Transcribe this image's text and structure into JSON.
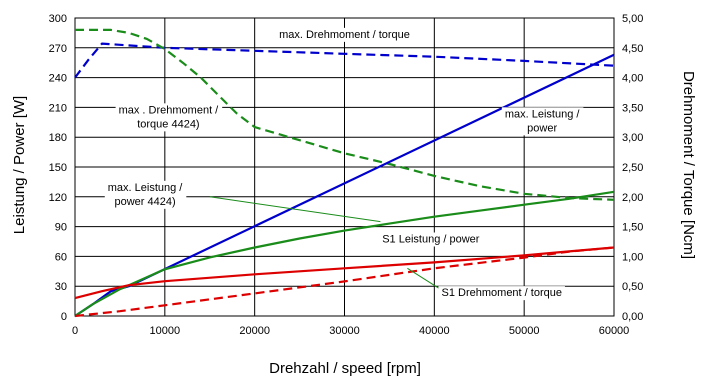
{
  "chart_data": {
    "type": "line",
    "xlabel": "Drehzahl / speed [rpm]",
    "ylabel_left": "Leistung / Power [W]",
    "ylabel_right": "Drehmoment / Torque  [Ncm]",
    "xlim": [
      0,
      60000
    ],
    "ylim_left": [
      0,
      300
    ],
    "ylim_right": [
      0,
      5
    ],
    "x_ticks": [
      "0",
      "10000",
      "20000",
      "30000",
      "40000",
      "50000",
      "60000"
    ],
    "y_left_ticks": [
      "0",
      "30",
      "60",
      "90",
      "120",
      "150",
      "180",
      "210",
      "240",
      "270",
      "300"
    ],
    "y_right_ticks": [
      "0,00",
      "0,50",
      "1,00",
      "1,50",
      "2,00",
      "2,50",
      "3,00",
      "3,50",
      "4,00",
      "4,50",
      "5,00"
    ],
    "grid": true,
    "series": [
      {
        "id": "torque_max_dashed_blue",
        "axis": "right",
        "color": "#0000cc",
        "style": "dashed",
        "x": [
          0,
          1500,
          3000,
          5000,
          10000,
          20000,
          30000,
          40000,
          50000,
          60000
        ],
        "y": [
          4.0,
          4.3,
          4.57,
          4.55,
          4.5,
          4.45,
          4.4,
          4.35,
          4.28,
          4.2
        ]
      },
      {
        "id": "torque_max_4424_dashed_green",
        "axis": "right",
        "color": "#1a8c1a",
        "style": "dashed",
        "x": [
          0,
          4000,
          6000,
          8000,
          10000,
          12000,
          14000,
          16000,
          18000,
          20000,
          25000,
          30000,
          35000,
          40000,
          45000,
          50000,
          55000,
          60000
        ],
        "y": [
          4.8,
          4.8,
          4.75,
          4.65,
          4.48,
          4.25,
          4.0,
          3.7,
          3.4,
          3.17,
          2.95,
          2.73,
          2.55,
          2.35,
          2.18,
          2.05,
          1.98,
          1.95
        ]
      },
      {
        "id": "power_max_solid_blue",
        "axis": "left",
        "color": "#0000cc",
        "style": "solid",
        "x": [
          0,
          2000,
          4000,
          6000,
          60000
        ],
        "y": [
          0,
          12,
          25,
          30,
          263
        ]
      },
      {
        "id": "power_max_4424_solid_green",
        "axis": "left",
        "color": "#1a8c1a",
        "style": "solid",
        "x": [
          0,
          2000,
          5000,
          10000,
          15000,
          20000,
          25000,
          30000,
          35000,
          40000,
          45000,
          50000,
          55000,
          60000
        ],
        "y": [
          0,
          12,
          27,
          47,
          59,
          69,
          78,
          86,
          93,
          100,
          106,
          112,
          118,
          125
        ]
      },
      {
        "id": "power_s1_solid_red",
        "axis": "left",
        "color": "#dd0000",
        "style": "solid",
        "x": [
          0,
          3000,
          6000,
          10000,
          20000,
          30000,
          40000,
          50000,
          55000,
          60000
        ],
        "y": [
          18,
          25,
          31,
          35,
          42,
          48,
          54,
          61,
          65,
          69
        ]
      },
      {
        "id": "torque_s1_dashed_red",
        "axis": "right",
        "color": "#dd0000",
        "style": "dashed",
        "x": [
          0,
          5000,
          10000,
          20000,
          30000,
          40000,
          50000,
          55000,
          60000
        ],
        "y": [
          0,
          0.08,
          0.18,
          0.38,
          0.58,
          0.8,
          0.98,
          1.08,
          1.15
        ]
      }
    ],
    "annotations": [
      {
        "id": "torque_max",
        "lines": [
          "max. Drehmoment / torque"
        ],
        "x": 30000,
        "y": 280,
        "anchor": "middle",
        "leader": null
      },
      {
        "id": "torque_max_4424",
        "lines": [
          "max . Drehmoment /",
          "torque  4424)"
        ],
        "x": 10400,
        "y": 204,
        "anchor": "middle",
        "leader": null
      },
      {
        "id": "power_max",
        "lines": [
          "max. Leistung /",
          "power"
        ],
        "x": 52000,
        "y": 200,
        "anchor": "middle",
        "leader": null
      },
      {
        "id": "power_max_4424",
        "lines": [
          "max. Leistung /",
          "power 4424)"
        ],
        "x": 7800,
        "y": 126,
        "anchor": "middle",
        "leader": [
          [
            15000,
            120
          ],
          [
            34000,
            95
          ]
        ]
      },
      {
        "id": "power_s1",
        "lines": [
          "S1  Leistung / power"
        ],
        "x": 34200,
        "y": 74,
        "anchor": "start",
        "leader": null
      },
      {
        "id": "torque_s1",
        "lines": [
          "S1 Drehmoment / torque"
        ],
        "x": 40800,
        "y": 20,
        "anchor": "start",
        "leader": [
          [
            40500,
            28
          ],
          [
            37000,
            48
          ]
        ]
      }
    ]
  }
}
